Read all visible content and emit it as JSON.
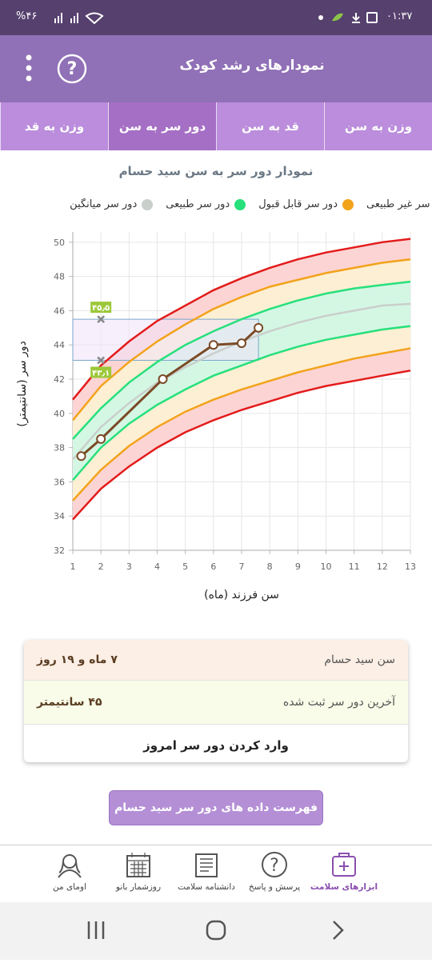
{
  "status_bar": {
    "battery": "%۴۶",
    "time": "۰۱:۳۷"
  },
  "header": {
    "title": "نمودارهای رشد کودک",
    "help": "?"
  },
  "tabs": [
    "وزن به سن",
    "قد به سن",
    "دور سر به سن",
    "وزن به قد"
  ],
  "active_tab": 2,
  "chart_data": {
    "type": "line",
    "title": "نمودار دور سر به سن سید حسام",
    "x_label": "سن فرزند (ماه)",
    "y_label": "دور سر (سانتیمتر)",
    "x": [
      1,
      2,
      3,
      4,
      5,
      6,
      7,
      8,
      9,
      10,
      11,
      12,
      13
    ],
    "xlim": [
      1,
      13
    ],
    "xticks": [
      1,
      2,
      3,
      4,
      5,
      6,
      7,
      8,
      9,
      10,
      11,
      12,
      13
    ],
    "ylim": [
      32,
      50.6
    ],
    "yticks": [
      32,
      34,
      36,
      38,
      40,
      42,
      44,
      46,
      48,
      50
    ],
    "grid": true,
    "series": [
      {
        "name": "دور سر غیر طبیعی",
        "color": "#e31b1b",
        "fill": "#fcd4d4",
        "lower": [
          33.8,
          35.6,
          36.9,
          38.0,
          38.9,
          39.6,
          40.2,
          40.7,
          41.2,
          41.6,
          41.9,
          42.2,
          42.5
        ],
        "upper": [
          40.8,
          42.8,
          44.2,
          45.4,
          46.3,
          47.2,
          47.9,
          48.5,
          49.0,
          49.4,
          49.7,
          50.0,
          50.2
        ]
      },
      {
        "name": "دور سر قابل قبول",
        "color": "#f2a31c",
        "fill": "#fdefd3",
        "lower": [
          34.9,
          36.7,
          38.1,
          39.2,
          40.1,
          40.8,
          41.4,
          41.9,
          42.4,
          42.8,
          43.2,
          43.5,
          43.8
        ],
        "upper": [
          39.6,
          41.6,
          43.0,
          44.2,
          45.2,
          46.1,
          46.8,
          47.4,
          47.8,
          48.2,
          48.5,
          48.8,
          49.0
        ]
      },
      {
        "name": "دور سر طبیعی",
        "color": "#27e07c",
        "fill": "#d4f7e4",
        "lower": [
          36.1,
          38.0,
          39.4,
          40.5,
          41.4,
          42.2,
          42.8,
          43.4,
          43.9,
          44.3,
          44.6,
          44.9,
          45.1
        ],
        "upper": [
          38.5,
          40.3,
          41.8,
          43.0,
          44.0,
          44.8,
          45.5,
          46.1,
          46.6,
          47.0,
          47.3,
          47.5,
          47.7
        ]
      },
      {
        "name": "دور سر میانگین",
        "color": "#c9cfcb",
        "values": [
          37.3,
          39.2,
          40.6,
          41.8,
          42.7,
          43.5,
          44.2,
          44.8,
          45.3,
          45.7,
          46.0,
          46.3,
          46.4
        ]
      }
    ],
    "child_color": "#7b4a26",
    "child_x": [
      1.3,
      2.0,
      4.2,
      6.0,
      7.0,
      7.6
    ],
    "child_values": [
      37.5,
      38.5,
      42.0,
      44.0,
      44.1,
      45.0
    ],
    "markers": [
      {
        "x": 2,
        "value": 45.5,
        "label": "۴۵٫۵"
      },
      {
        "x": 2,
        "value": 43.1,
        "label": "۴۳٫۱"
      }
    ]
  },
  "info_card": {
    "rows": [
      {
        "label": "سن سید حسام",
        "value": "۷ ماه و ۱۹ روز"
      },
      {
        "label": "آخرین دور سر ثبت شده",
        "value": "۴۵ سانتیمتر"
      }
    ],
    "action": "وارد کردن دور سر امروز"
  },
  "list_button": "فهرست داده های دور سر سید حسام",
  "bottom_nav": {
    "items": [
      "ابزارهای سلامت",
      "پرسش و پاسخ",
      "دانشنامه سلامت",
      "روزشمار بانو",
      "اومای من"
    ],
    "active": 0
  }
}
